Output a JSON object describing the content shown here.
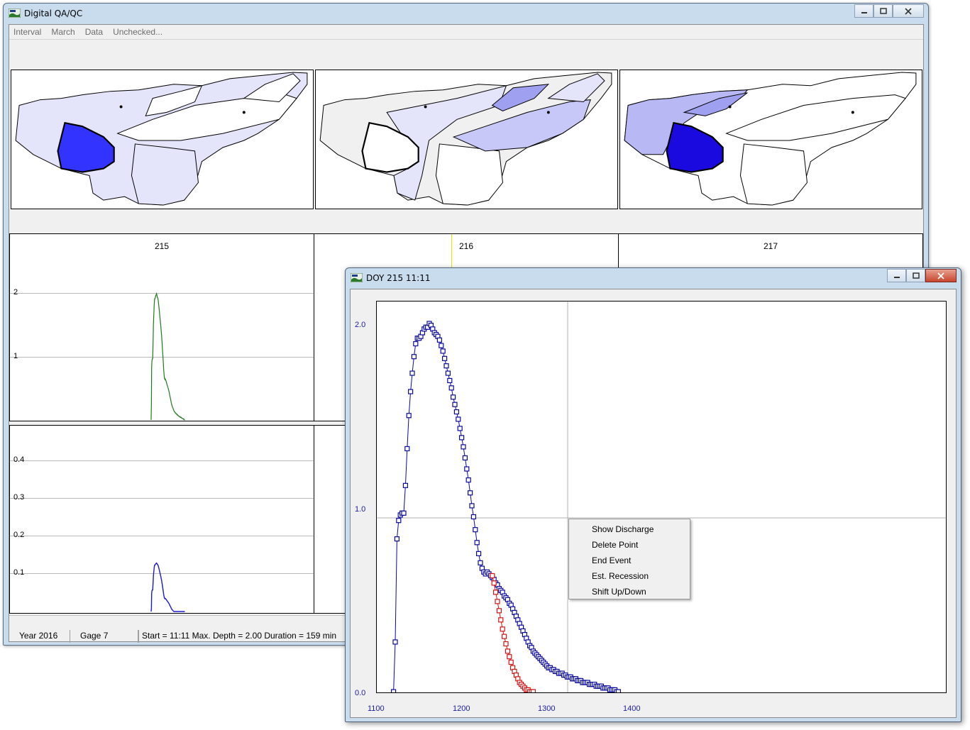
{
  "main_window": {
    "title": "Digital QA/QC",
    "menu": [
      "Interval",
      "March",
      "Data",
      "Unchecked..."
    ]
  },
  "charts": {
    "columns": [
      {
        "label": "215"
      },
      {
        "label": "216"
      },
      {
        "label": "217"
      }
    ],
    "top_row_ticks": [
      "2",
      "1"
    ],
    "bottom_row_ticks": [
      "0.4",
      "0.3",
      "0.2",
      "0.1"
    ]
  },
  "status_bar": {
    "year": "Year  2016",
    "gage": "Gage  7",
    "event": "Start = 11:11    Max. Depth = 2.00    Duration = 159 min"
  },
  "dialog": {
    "title": "DOY 215  11:11",
    "y_ticks": [
      "2.0",
      "1.0",
      "0.0"
    ],
    "x_ticks": [
      "1100",
      "1200",
      "1300",
      "1400"
    ]
  },
  "context_menu": {
    "items": [
      "Show Discharge",
      "Delete Point",
      "End Event",
      "Est. Recession",
      "Shift Up/Down"
    ]
  },
  "colors": {
    "selected_watershed": "#3333ff",
    "light_watershed": "#e4e4fb",
    "gage_trace_top": "#1f7a1f",
    "gage_trace_bottom": "#1a1acc",
    "observed_series": "#0a0aa0",
    "recession_series": "#d21414"
  },
  "chart_data": {
    "type": "scatter",
    "xlim": [
      1100,
      1400
    ],
    "ylim": [
      0,
      2.0
    ],
    "series": [
      {
        "x": [
          1118,
          1120,
          1122,
          1124,
          1126,
          1128,
          1130,
          1132,
          1134,
          1136,
          1138,
          1140,
          1142,
          1144,
          1146,
          1148,
          1150,
          1152,
          1154,
          1156,
          1158,
          1160,
          1162,
          1164,
          1166,
          1168,
          1170,
          1172,
          1174,
          1176,
          1178,
          1180,
          1182,
          1184,
          1186,
          1188,
          1190,
          1192,
          1194,
          1196,
          1198,
          1200,
          1202,
          1204,
          1206,
          1208,
          1210,
          1212,
          1214,
          1216,
          1218,
          1220,
          1222,
          1224,
          1226,
          1228,
          1230,
          1232,
          1234,
          1236,
          1238,
          1240,
          1242,
          1244,
          1246,
          1248,
          1250,
          1252,
          1254,
          1256,
          1258,
          1260,
          1262,
          1264,
          1266,
          1268,
          1270,
          1272,
          1274,
          1276,
          1278,
          1280,
          1282,
          1284,
          1286,
          1288,
          1290,
          1292,
          1294,
          1296,
          1298,
          1300,
          1302,
          1304,
          1306,
          1308,
          1310,
          1312,
          1314,
          1316,
          1318,
          1320,
          1322,
          1324,
          1326,
          1328,
          1330,
          1332,
          1334,
          1336,
          1338,
          1340,
          1342,
          1344,
          1346,
          1348,
          1350,
          1352,
          1354,
          1356,
          1358,
          1360,
          1362,
          1364,
          1366,
          1368,
          1370,
          1372,
          1374,
          1376,
          1378,
          1380,
          1382
        ],
        "y": [
          0,
          0.27,
          0.83,
          0.93,
          0.96,
          0.97,
          0.97,
          1.12,
          1.32,
          1.5,
          1.63,
          1.73,
          1.82,
          1.89,
          1.92,
          1.92,
          1.93,
          1.95,
          1.97,
          1.98,
          1.98,
          2.0,
          1.99,
          1.97,
          1.95,
          1.94,
          1.93,
          1.91,
          1.88,
          1.85,
          1.81,
          1.77,
          1.73,
          1.69,
          1.65,
          1.6,
          1.56,
          1.52,
          1.48,
          1.43,
          1.38,
          1.33,
          1.27,
          1.21,
          1.15,
          1.08,
          1.01,
          0.95,
          0.88,
          0.81,
          0.75,
          0.7,
          0.67,
          0.65,
          0.64,
          0.65,
          0.64,
          0.63,
          0.62,
          0.61,
          0.59,
          0.58,
          0.56,
          0.55,
          0.54,
          0.52,
          0.51,
          0.5,
          0.48,
          0.47,
          0.45,
          0.43,
          0.41,
          0.39,
          0.37,
          0.35,
          0.33,
          0.31,
          0.29,
          0.27,
          0.25,
          0.24,
          0.22,
          0.21,
          0.2,
          0.19,
          0.18,
          0.17,
          0.16,
          0.15,
          0.14,
          0.13,
          0.13,
          0.12,
          0.12,
          0.11,
          0.11,
          0.1,
          0.1,
          0.1,
          0.09,
          0.09,
          0.08,
          0.08,
          0.08,
          0.07,
          0.07,
          0.07,
          0.06,
          0.06,
          0.06,
          0.05,
          0.05,
          0.05,
          0.05,
          0.04,
          0.04,
          0.04,
          0.04,
          0.03,
          0.03,
          0.03,
          0.03,
          0.02,
          0.02,
          0.02,
          0.02,
          0.01,
          0.01,
          0.01,
          0.01,
          0.0,
          0.0
        ]
      },
      {
        "x": [
          1234,
          1236,
          1238,
          1240,
          1242,
          1244,
          1246,
          1248,
          1250,
          1252,
          1254,
          1256,
          1258,
          1260,
          1262,
          1264,
          1266,
          1268,
          1270,
          1272,
          1274,
          1276,
          1278,
          1280,
          1282
        ],
        "y": [
          0.63,
          0.59,
          0.54,
          0.49,
          0.44,
          0.39,
          0.34,
          0.3,
          0.26,
          0.22,
          0.19,
          0.16,
          0.13,
          0.11,
          0.09,
          0.07,
          0.05,
          0.04,
          0.03,
          0.02,
          0.01,
          0.01,
          0.0,
          0.0,
          0.0
        ]
      }
    ]
  }
}
